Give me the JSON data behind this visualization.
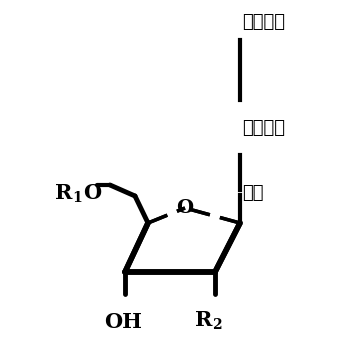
{
  "background_color": "#ffffff",
  "text_color": "#000000",
  "labels": {
    "fluorescent_group": "荧光基团",
    "linker_unit": "连接单元",
    "base": "碎基",
    "r1o_r": "R",
    "r1o_sub": "1",
    "r1o_o": "O",
    "oh": "OH",
    "r2_r": "R",
    "r2_sub": "2",
    "oxygen": "O"
  },
  "line_color": "#000000",
  "line_width": 2.5,
  "figsize": [
    3.39,
    3.52
  ],
  "dpi": 100
}
